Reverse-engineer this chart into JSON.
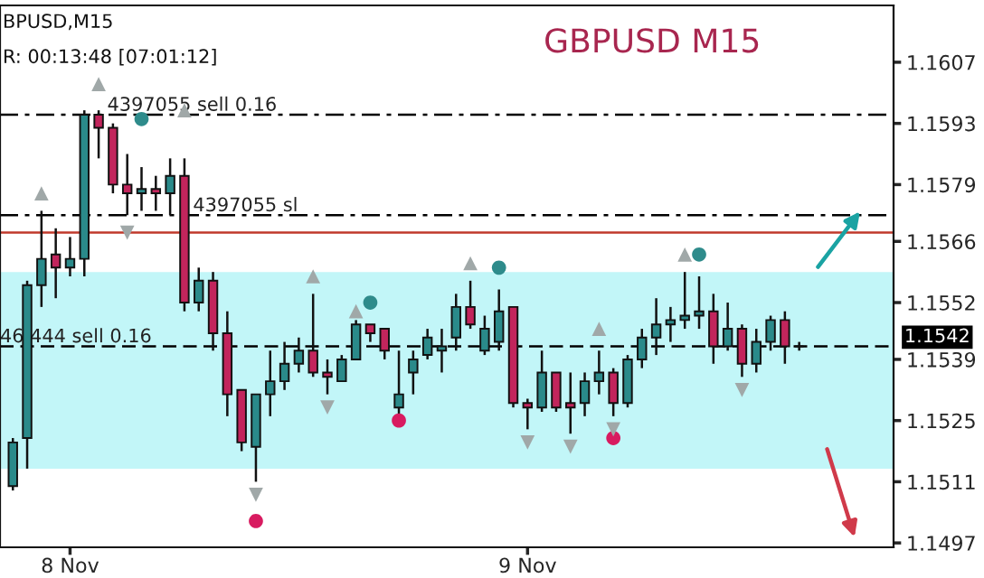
{
  "chart_data": {
    "type": "candlestick",
    "title": "GBPUSD M15",
    "categories": [
      null,
      null,
      null,
      null,
      "8 Nov",
      null,
      null,
      null,
      null,
      null,
      null,
      null,
      null,
      null,
      null,
      null,
      null,
      null,
      null,
      null,
      null,
      null,
      null,
      null,
      null,
      null,
      null,
      null,
      null,
      null,
      null,
      null,
      null,
      null,
      null,
      null,
      "9 Nov",
      null,
      null,
      null,
      null,
      null,
      null,
      null,
      null,
      null,
      null,
      null,
      null,
      null,
      null,
      null,
      null,
      null,
      null,
      null
    ],
    "ohlc": [
      [
        1.151,
        1.1521,
        1.1509,
        1.152
      ],
      [
        1.1521,
        1.1557,
        1.1514,
        1.1556
      ],
      [
        1.1556,
        1.1573,
        1.1551,
        1.1562
      ],
      [
        1.1563,
        1.1569,
        1.1553,
        1.156
      ],
      [
        1.156,
        1.1567,
        1.1558,
        1.1562
      ],
      [
        1.1562,
        1.1596,
        1.1558,
        1.1595
      ],
      [
        1.1595,
        1.1596,
        1.1585,
        1.1592
      ],
      [
        1.1592,
        1.1593,
        1.1577,
        1.1579
      ],
      [
        1.1579,
        1.1586,
        1.1572,
        1.1577
      ],
      [
        1.1577,
        1.1583,
        1.1573,
        1.1578
      ],
      [
        1.1578,
        1.1581,
        1.1573,
        1.1577
      ],
      [
        1.1577,
        1.1585,
        1.1572,
        1.1581
      ],
      [
        1.1581,
        1.1585,
        1.155,
        1.1552
      ],
      [
        1.1552,
        1.156,
        1.155,
        1.1557
      ],
      [
        1.1557,
        1.1559,
        1.1541,
        1.1545
      ],
      [
        1.1545,
        1.155,
        1.1526,
        1.1531
      ],
      [
        1.1532,
        1.1532,
        1.1518,
        1.152
      ],
      [
        1.1519,
        1.1531,
        1.1511,
        1.1531
      ],
      [
        1.1531,
        1.1541,
        1.1526,
        1.1534
      ],
      [
        1.1534,
        1.1543,
        1.1532,
        1.1538
      ],
      [
        1.1538,
        1.1544,
        1.1536,
        1.1541
      ],
      [
        1.1541,
        1.1554,
        1.1535,
        1.1536
      ],
      [
        1.1536,
        1.1539,
        1.1531,
        1.1535
      ],
      [
        1.1534,
        1.154,
        1.1534,
        1.1539
      ],
      [
        1.1539,
        1.1548,
        1.1539,
        1.1547
      ],
      [
        1.1547,
        1.1547,
        1.1543,
        1.1545
      ],
      [
        1.1546,
        1.1546,
        1.1539,
        1.1541
      ],
      [
        1.1528,
        1.1541,
        1.1526,
        1.1531
      ],
      [
        1.1536,
        1.1541,
        1.1531,
        1.1539
      ],
      [
        1.154,
        1.1546,
        1.1539,
        1.1544
      ],
      [
        1.1541,
        1.1546,
        1.1536,
        1.1542
      ],
      [
        1.1544,
        1.1554,
        1.1541,
        1.1551
      ],
      [
        1.1551,
        1.1557,
        1.1546,
        1.1547
      ],
      [
        1.1541,
        1.1549,
        1.154,
        1.1546
      ],
      [
        1.1543,
        1.1555,
        1.1541,
        1.155
      ],
      [
        1.1551,
        1.1551,
        1.1528,
        1.1529
      ],
      [
        1.1529,
        1.153,
        1.1523,
        1.1528
      ],
      [
        1.1528,
        1.1541,
        1.1527,
        1.1536
      ],
      [
        1.1536,
        1.1536,
        1.1527,
        1.1528
      ],
      [
        1.1529,
        1.1536,
        1.1522,
        1.1528
      ],
      [
        1.1529,
        1.1536,
        1.1526,
        1.1534
      ],
      [
        1.1534,
        1.1541,
        1.1531,
        1.1536
      ],
      [
        1.1536,
        1.1537,
        1.1526,
        1.1529
      ],
      [
        1.1529,
        1.154,
        1.1528,
        1.1539
      ],
      [
        1.1539,
        1.1546,
        1.1537,
        1.1544
      ],
      [
        1.1544,
        1.1553,
        1.154,
        1.1547
      ],
      [
        1.1547,
        1.1551,
        1.1543,
        1.1548
      ],
      [
        1.1548,
        1.1559,
        1.1546,
        1.1549
      ],
      [
        1.1549,
        1.1558,
        1.1546,
        1.155
      ],
      [
        1.155,
        1.1554,
        1.1538,
        1.1542
      ],
      [
        1.1542,
        1.1552,
        1.1541,
        1.1546
      ],
      [
        1.1546,
        1.1547,
        1.1535,
        1.1538
      ],
      [
        1.1538,
        1.1546,
        1.1536,
        1.1543
      ],
      [
        1.1543,
        1.1549,
        1.1541,
        1.1548
      ],
      [
        1.1548,
        1.155,
        1.1538,
        1.1542
      ],
      [
        1.1542,
        1.1543,
        1.1541,
        1.1542
      ]
    ],
    "series": [
      {
        "type": "scatter",
        "color": "#2e8b8b",
        "marker": "circle",
        "values": [
          null,
          null,
          null,
          null,
          null,
          null,
          null,
          null,
          null,
          1.1594,
          null,
          null,
          null,
          null,
          null,
          null,
          null,
          null,
          null,
          null,
          null,
          null,
          null,
          null,
          null,
          1.1552,
          null,
          null,
          null,
          null,
          null,
          null,
          null,
          null,
          1.156,
          null,
          null,
          null,
          null,
          null,
          null,
          null,
          null,
          null,
          null,
          null,
          null,
          null,
          1.1563,
          null,
          null,
          null,
          null,
          null,
          null,
          null
        ]
      },
      {
        "type": "scatter",
        "color": "#d81b60",
        "marker": "circle",
        "values": [
          null,
          null,
          null,
          null,
          null,
          null,
          null,
          null,
          null,
          null,
          null,
          null,
          null,
          null,
          null,
          null,
          null,
          1.1502,
          null,
          null,
          null,
          null,
          null,
          null,
          null,
          null,
          null,
          1.1525,
          null,
          null,
          null,
          null,
          null,
          null,
          null,
          null,
          null,
          null,
          null,
          null,
          null,
          null,
          1.1521,
          null,
          null,
          null,
          null,
          null,
          null,
          null,
          null,
          null,
          null,
          null,
          null,
          null
        ]
      },
      {
        "type": "scatter",
        "color": "#a0a8a8",
        "marker": "triangle",
        "values": [
          null,
          null,
          1.1577,
          null,
          null,
          null,
          1.1602,
          null,
          null,
          null,
          null,
          null,
          1.1596,
          null,
          null,
          null,
          null,
          null,
          null,
          null,
          null,
          1.1558,
          null,
          null,
          1.155,
          null,
          null,
          null,
          null,
          null,
          null,
          null,
          1.1561,
          null,
          null,
          null,
          null,
          null,
          null,
          null,
          null,
          1.1546,
          null,
          null,
          null,
          null,
          null,
          1.1563,
          null,
          null,
          null,
          null,
          null,
          null,
          null,
          null
        ]
      },
      {
        "type": "scatter",
        "color": "#a0a8a8",
        "marker": "triangle_down",
        "values": [
          null,
          null,
          null,
          null,
          null,
          null,
          null,
          null,
          1.1568,
          null,
          null,
          null,
          null,
          null,
          null,
          null,
          null,
          1.1508,
          null,
          null,
          null,
          null,
          1.1528,
          null,
          null,
          null,
          null,
          null,
          null,
          null,
          null,
          null,
          null,
          null,
          null,
          null,
          1.152,
          null,
          null,
          1.1519,
          null,
          null,
          1.1523,
          null,
          null,
          null,
          null,
          null,
          null,
          null,
          null,
          1.1532,
          null,
          null,
          null,
          null
        ]
      }
    ],
    "ylim": [
      1.1496,
      1.162
    ],
    "yticks": [
      1.1497,
      1.1511,
      1.1525,
      1.1539,
      1.1552,
      1.1566,
      1.1579,
      1.1593,
      1.1607
    ],
    "ref_lines": [
      {
        "axis": "y",
        "value": 1.1595,
        "label": "4397055 sell 0.16",
        "color": "#000000",
        "line_style": "dashdot"
      },
      {
        "axis": "y",
        "value": 1.1572,
        "label": "4397055 sl",
        "color": "#000000",
        "line_style": "dashdot"
      },
      {
        "axis": "y",
        "value": 1.1568,
        "color": "#c0392b",
        "line_style": "solid"
      },
      {
        "axis": "y",
        "value": 1.1542,
        "label": "46 444 sell 0.16",
        "color": "#000000",
        "line_style": "dashed"
      }
    ],
    "bands": [
      {
        "axis": "y",
        "from": 1.1514,
        "to": 1.1559,
        "color": "#c2f6f8"
      }
    ],
    "annotations": [
      "BPUSD,M15",
      "R: 00:13:48 [07:01:12]",
      "1.1542"
    ],
    "grid": false,
    "legend": false
  }
}
